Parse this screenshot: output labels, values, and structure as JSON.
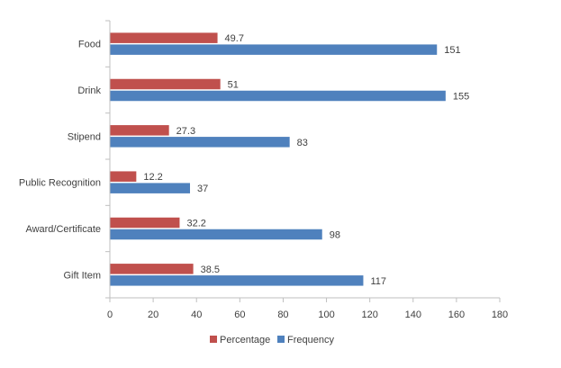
{
  "chart_data": {
    "type": "bar",
    "orientation": "horizontal",
    "categories": [
      "Food",
      "Drink",
      "Stipend",
      "Public Recognition",
      "Award/Certificate",
      "Gift Item"
    ],
    "series": [
      {
        "name": "Percentage",
        "values": [
          49.7,
          51,
          27.3,
          12.2,
          32.2,
          38.5
        ],
        "color": "#C0504D"
      },
      {
        "name": "Frequency",
        "values": [
          151,
          155,
          83,
          37,
          98,
          117
        ],
        "color": "#4F81BD"
      }
    ],
    "xlim": [
      0,
      180
    ],
    "x_ticks": [
      0,
      20,
      40,
      60,
      80,
      100,
      120,
      140,
      160,
      180
    ],
    "grid": false,
    "legend_position": "bottom"
  }
}
